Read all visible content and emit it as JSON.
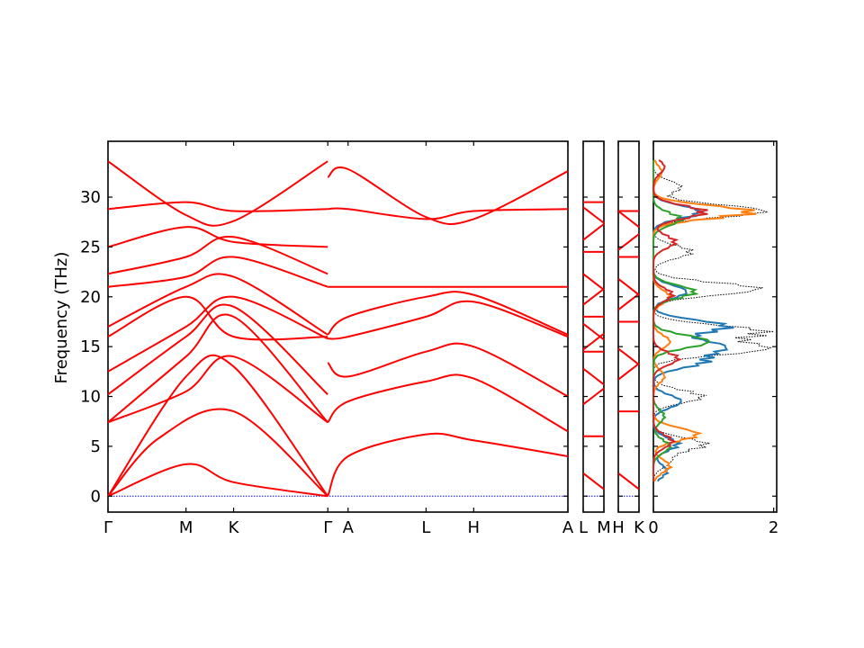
{
  "chart_data": {
    "type": "line",
    "ylabel": "Frequency (THz)",
    "ylim": [
      -1.6,
      35.6
    ],
    "yticks": [
      0,
      5,
      10,
      15,
      20,
      25,
      30
    ],
    "band_color": "#ff0000",
    "zero_line_color": "#0000ff",
    "panels": [
      {
        "id": "path1",
        "xticks": [
          "Γ",
          "M",
          "K",
          "Γ",
          "A",
          "L",
          "H",
          "A"
        ],
        "segments": [
          {
            "from": "Γ",
            "to": "M",
            "length": 0.77
          },
          {
            "from": "M",
            "to": "K",
            "length": 0.47
          },
          {
            "from": "K",
            "to": "Γ",
            "length": 0.93
          },
          {
            "from": "Γ",
            "to": "A",
            "length": 0.2
          },
          {
            "from": "A",
            "to": "L",
            "length": 0.77
          },
          {
            "from": "L",
            "to": "H",
            "length": 0.47
          },
          {
            "from": "H",
            "to": "A",
            "length": 0.93
          }
        ],
        "bands": [
          {
            "name": "acoustic-1",
            "x": [
              0,
              0.77,
              1.24,
              2.17
            ],
            "y": [
              0,
              3.2,
              1.4,
              0
            ]
          },
          {
            "name": "acoustic-2",
            "x": [
              0,
              0.5,
              1.24,
              2.17
            ],
            "y": [
              0,
              5.8,
              8.5,
              0
            ]
          },
          {
            "name": "acoustic-3",
            "x": [
              0,
              0.77,
              1.24,
              2.17
            ],
            "y": [
              0,
              12.0,
              13.0,
              0
            ]
          },
          {
            "name": "branch-4",
            "x": [
              0,
              0.77,
              1.24,
              2.17
            ],
            "y": [
              7.4,
              10.5,
              14.0,
              7.4
            ]
          },
          {
            "name": "branch-5",
            "x": [
              0,
              0.77,
              1.24,
              2.17
            ],
            "y": [
              7.4,
              14.0,
              18.0,
              7.4
            ]
          },
          {
            "name": "branch-6",
            "x": [
              0,
              0.77,
              1.24,
              2.17
            ],
            "y": [
              10.2,
              16.0,
              19.0,
              10.2
            ]
          },
          {
            "name": "branch-7",
            "x": [
              0,
              0.77,
              1.24,
              2.17
            ],
            "y": [
              12.5,
              17.0,
              20.0,
              15.8
            ]
          },
          {
            "name": "branch-8",
            "x": [
              0,
              0.77,
              1.24,
              2.17
            ],
            "y": [
              16.0,
              20.0,
              16.0,
              16.0
            ]
          },
          {
            "name": "branch-9",
            "x": [
              0,
              0.77,
              1.24,
              2.17
            ],
            "y": [
              17.0,
              21.0,
              22.0,
              16.2
            ]
          },
          {
            "name": "branch-10",
            "x": [
              0,
              0.77,
              1.24,
              2.17
            ],
            "y": [
              21.0,
              22.0,
              24.0,
              21.0
            ]
          },
          {
            "name": "branch-11",
            "x": [
              0,
              0.77,
              1.24,
              2.17
            ],
            "y": [
              22.3,
              24.0,
              26.0,
              22.3
            ]
          },
          {
            "name": "branch-12",
            "x": [
              0,
              0.77,
              1.24,
              2.17
            ],
            "y": [
              25.0,
              27.0,
              25.5,
              25.0
            ]
          },
          {
            "name": "branch-13",
            "x": [
              0,
              0.77,
              1.24,
              2.17
            ],
            "y": [
              28.8,
              29.5,
              28.6,
              28.8
            ]
          },
          {
            "name": "branch-14",
            "x": [
              0,
              0.77,
              1.24,
              2.17
            ],
            "y": [
              33.6,
              28.2,
              27.6,
              33.6
            ]
          },
          {
            "name": "branch-15",
            "x": [
              2.17,
              2.37,
              3.14,
              3.61,
              4.54
            ],
            "y": [
              0,
              4.0,
              6.2,
              5.6,
              4.0
            ]
          },
          {
            "name": "branch-16",
            "x": [
              2.17,
              2.37,
              3.14,
              3.61,
              4.54
            ],
            "y": [
              7.4,
              9.5,
              11.5,
              11.8,
              6.5
            ]
          },
          {
            "name": "branch-17",
            "x": [
              2.17,
              2.37,
              3.14,
              3.61,
              4.54
            ],
            "y": [
              13.4,
              12.0,
              14.5,
              15.0,
              10.0
            ]
          },
          {
            "name": "branch-18",
            "x": [
              2.17,
              2.37,
              3.14,
              3.61,
              4.54
            ],
            "y": [
              15.8,
              16.0,
              18.0,
              19.5,
              16.0
            ]
          },
          {
            "name": "branch-19",
            "x": [
              2.17,
              2.37,
              3.14,
              3.61,
              4.54
            ],
            "y": [
              16.2,
              18.0,
              20.0,
              20.2,
              16.2
            ]
          },
          {
            "name": "branch-20",
            "x": [
              2.17,
              2.37,
              3.14,
              3.61,
              4.54
            ],
            "y": [
              21.0,
              21.0,
              21.0,
              21.0,
              21.0
            ]
          },
          {
            "name": "branch-21",
            "x": [
              2.17,
              2.37,
              3.14,
              3.61,
              4.54
            ],
            "y": [
              28.8,
              28.8,
              27.8,
              28.6,
              28.8
            ]
          },
          {
            "name": "branch-22",
            "x": [
              2.17,
              2.37,
              3.14,
              3.61,
              4.54
            ],
            "y": [
              32.0,
              32.8,
              28.0,
              27.8,
              32.6
            ]
          }
        ]
      },
      {
        "id": "path2",
        "xticks": [
          "L",
          "M"
        ],
        "levels": [
          1.5,
          6.0,
          10.0,
          12.0,
          14.5,
          15.5,
          16.5,
          18.0,
          20.0,
          21.5,
          24.5,
          26.5,
          28.2,
          29.5
        ]
      },
      {
        "id": "path3",
        "xticks": [
          "H",
          "K"
        ],
        "levels": [
          1.5,
          8.5,
          12.5,
          14.0,
          17.5,
          19.5,
          21.0,
          24.0,
          25.5,
          27.8,
          28.6
        ]
      }
    ],
    "dos": {
      "xlim": [
        0,
        2.05
      ],
      "xticks": [
        0,
        2
      ],
      "total_color": "#000000",
      "partial_series": [
        {
          "color": "#1f77b4",
          "peaks": [
            [
              2.5,
              0.25
            ],
            [
              5.2,
              0.45
            ],
            [
              9.5,
              0.5
            ],
            [
              13.5,
              0.9
            ],
            [
              15.0,
              1.25
            ],
            [
              17.0,
              1.35
            ],
            [
              20.5,
              0.6
            ],
            [
              28.5,
              0.85
            ]
          ]
        },
        {
          "color": "#ff7f0e",
          "peaks": [
            [
              3.0,
              0.3
            ],
            [
              6.2,
              0.8
            ],
            [
              12.0,
              0.2
            ],
            [
              15.5,
              0.3
            ],
            [
              20.0,
              0.3
            ],
            [
              28.5,
              1.8
            ],
            [
              32.5,
              0.15
            ]
          ]
        },
        {
          "color": "#2ca02c",
          "peaks": [
            [
              5.0,
              0.3
            ],
            [
              8.0,
              0.2
            ],
            [
              15.5,
              1.0
            ],
            [
              20.5,
              0.75
            ],
            [
              27.8,
              0.5
            ]
          ]
        },
        {
          "color": "#d62728",
          "peaks": [
            [
              5.5,
              0.35
            ],
            [
              13.8,
              0.45
            ],
            [
              20.2,
              0.35
            ],
            [
              25.5,
              0.4
            ],
            [
              28.5,
              0.95
            ],
            [
              33.0,
              0.2
            ]
          ]
        }
      ],
      "total_peaks": [
        [
          3.5,
          0.3
        ],
        [
          5.2,
          0.95
        ],
        [
          10.0,
          0.9
        ],
        [
          14.8,
          2.0
        ],
        [
          16.5,
          2.0
        ],
        [
          20.8,
          1.9
        ],
        [
          24.5,
          0.7
        ],
        [
          28.6,
          2.0
        ],
        [
          31.0,
          0.5
        ]
      ]
    }
  }
}
